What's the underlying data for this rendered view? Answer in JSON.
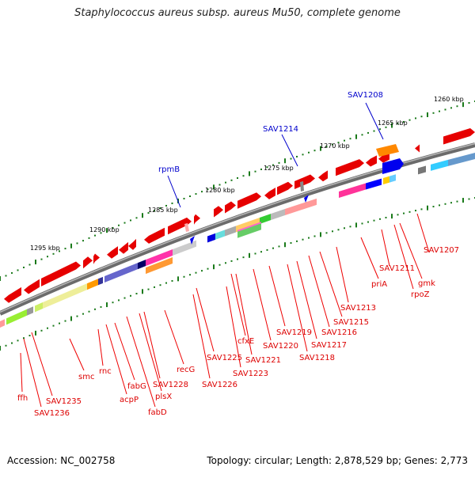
{
  "title": "Staphylococcus aureus subsp. aureus Mu50, complete genome",
  "footer": {
    "accession": "Accession: NC_002758",
    "summary": "Topology: circular; Length: 2,878,529 bp; Genes: 2,773"
  },
  "scale_labels": [
    "1260 kbp",
    "1265 kbp",
    "1270 kbp",
    "1275 kbp",
    "1280 kbp",
    "1285 kbp",
    "1290 kbp",
    "1295 kbp"
  ],
  "gene_labels_top": [
    "SAV1208",
    "SAV1214",
    "rpmB"
  ],
  "gene_labels_bottom": [
    "SAV1207",
    "SAV1211",
    "gmk",
    "rpoZ",
    "priA",
    "SAV1213",
    "SAV1215",
    "SAV1216",
    "SAV1217",
    "SAV1218",
    "SAV1219",
    "SAV1220",
    "SAV1221",
    "cfxE",
    "SAV1223",
    "SAV1225",
    "SAV1226",
    "recG",
    "SAV1228",
    "plsX",
    "fabD",
    "fabG",
    "acpP",
    "rnc",
    "smc",
    "SAV1235",
    "SAV1236",
    "ffh"
  ]
}
